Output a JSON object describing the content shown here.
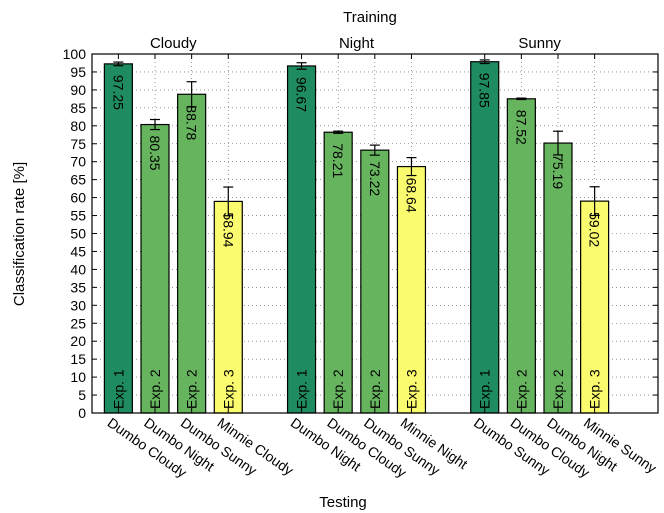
{
  "chart_data": {
    "type": "bar",
    "title": "Training",
    "xlabel": "Testing",
    "ylabel": "Classification rate [%]",
    "ylim": [
      0,
      100
    ],
    "yticks": [
      0,
      5,
      10,
      15,
      20,
      25,
      30,
      35,
      40,
      45,
      50,
      55,
      60,
      65,
      70,
      75,
      80,
      85,
      90,
      95,
      100
    ],
    "grid": "dotted",
    "colors": {
      "exp1": "#1e8c60",
      "exp2": "#66b55e",
      "exp3": "#fbfb6f"
    },
    "groups": [
      {
        "training": "Cloudy",
        "bars": [
          {
            "testing": "Dumbo Cloudy",
            "value": 97.25,
            "label": "97.25",
            "err": 0.5,
            "exp": "Exp. 1",
            "color_key": "exp1"
          },
          {
            "testing": "Dumbo Night",
            "value": 80.35,
            "label": "80.35",
            "err": 1.4,
            "exp": "Exp. 2",
            "color_key": "exp2"
          },
          {
            "testing": "Dumbo Sunny",
            "value": 88.78,
            "label": "88.78",
            "err": 3.5,
            "exp": "Exp. 2",
            "color_key": "exp2"
          },
          {
            "testing": "Minnie Cloudy",
            "value": 58.94,
            "label": "58.94",
            "err": 4.0,
            "exp": "Exp. 3",
            "color_key": "exp3"
          }
        ]
      },
      {
        "training": "Night",
        "bars": [
          {
            "testing": "Dumbo Night",
            "value": 96.67,
            "label": "96.67",
            "err": 0.9,
            "exp": "Exp. 1",
            "color_key": "exp1"
          },
          {
            "testing": "Dumbo Cloudy",
            "value": 78.21,
            "label": "78.21",
            "err": 0.3,
            "exp": "Exp. 2",
            "color_key": "exp2"
          },
          {
            "testing": "Dumbo Sunny",
            "value": 73.22,
            "label": "73.22",
            "err": 1.4,
            "exp": "Exp. 2",
            "color_key": "exp2"
          },
          {
            "testing": "Minnie Night",
            "value": 68.64,
            "label": "68.64",
            "err": 2.5,
            "exp": "Exp. 3",
            "color_key": "exp3"
          }
        ]
      },
      {
        "training": "Sunny",
        "bars": [
          {
            "testing": "Dumbo Sunny",
            "value": 97.85,
            "label": "97.85",
            "err": 0.5,
            "exp": "Exp. 1",
            "color_key": "exp1"
          },
          {
            "testing": "Dumbo Cloudy",
            "value": 87.52,
            "label": "87.52",
            "err": 0.2,
            "exp": "Exp. 2",
            "color_key": "exp2"
          },
          {
            "testing": "Dumbo Night",
            "value": 75.19,
            "label": "75.19",
            "err": 3.3,
            "exp": "Exp. 2",
            "color_key": "exp2"
          },
          {
            "testing": "Minnie Sunny",
            "value": 59.02,
            "label": "59.02",
            "err": 4.0,
            "exp": "Exp. 3",
            "color_key": "exp3"
          }
        ]
      }
    ]
  }
}
